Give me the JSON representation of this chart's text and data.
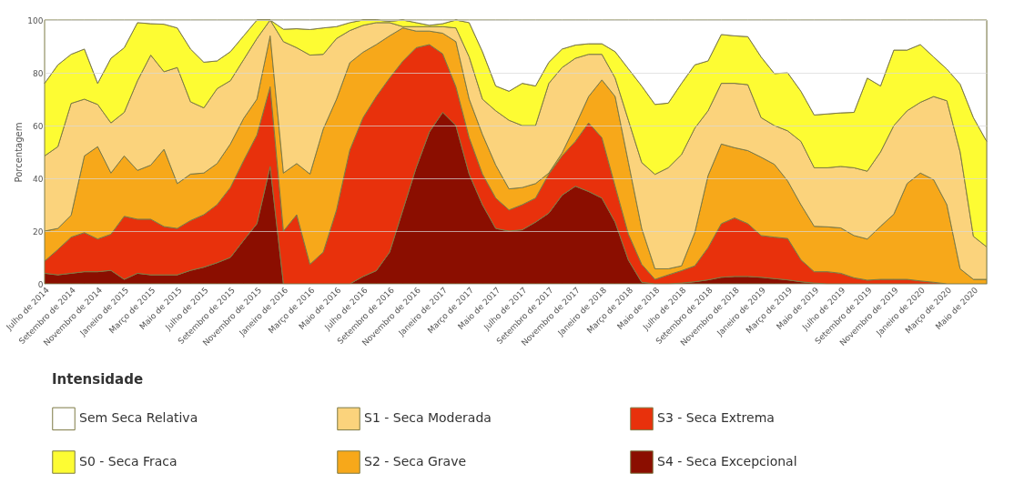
{
  "chart_data": {
    "type": "area",
    "stacked": true,
    "ylabel": "Porcentagem",
    "legend_title": "Intensidade",
    "legend": "bottom",
    "grid": "y",
    "ylim": [
      0,
      100
    ],
    "yticks": [
      0,
      20,
      40,
      60,
      80,
      100
    ],
    "categories": [
      "Julho de 2014",
      null,
      "Setembro de 2014",
      null,
      "Novembro de 2014",
      null,
      "Janeiro de 2015",
      null,
      "Março de 2015",
      null,
      "Maio de 2015",
      null,
      "Julho de 2015",
      null,
      "Setembro de 2015",
      null,
      "Novembro de 2015",
      null,
      "Janeiro de 2016",
      null,
      "Março de 2016",
      null,
      "Maio de 2016",
      null,
      "Julho de 2016",
      null,
      "Setembro de 2016",
      null,
      "Novembro de 2016",
      null,
      "Janeiro de 2017",
      null,
      "Março de 2017",
      null,
      "Maio de 2017",
      null,
      "Julho de 2017",
      null,
      "Setembro de 2017",
      null,
      "Novembro de 2017",
      null,
      "Janeiro de 2018",
      null,
      "Março de 2018",
      null,
      "Maio de 2018",
      null,
      "Julho de 2018",
      null,
      "Setembro de 2018",
      null,
      "Novembro de 2018",
      null,
      "Janeiro de 2019",
      null,
      "Março de 2019",
      null,
      "Maio de 2019",
      null,
      "Julho de 2019",
      null,
      "Setembro de 2019",
      null,
      "Novembro de 2019",
      null,
      "Janeiro de 2020",
      null,
      "Março de 2020",
      null,
      "Maio de 2020",
      null
    ],
    "series": [
      {
        "name": "S4 - Seca Excepcional",
        "color": "#8b0e00",
        "values": [
          4,
          3.4,
          4,
          4.6,
          4.6,
          5.1,
          1.7,
          4,
          3.4,
          3.4,
          3.4,
          5.1,
          6.3,
          8,
          10,
          16.5,
          22.8,
          44.5,
          0,
          0,
          0,
          0,
          0,
          0,
          2.8,
          5,
          12,
          28,
          44,
          57.6,
          65,
          60,
          41.6,
          30,
          21,
          20,
          20.5,
          23.4,
          26.8,
          33.6,
          37,
          35,
          32.5,
          23.4,
          9,
          0.6,
          0,
          0,
          0.3,
          0.8,
          1.5,
          2.5,
          2.8,
          2.8,
          2.5,
          2,
          1.5,
          0.8,
          0.3,
          0,
          0,
          0,
          0,
          0,
          0,
          0,
          0,
          0,
          0,
          0,
          0,
          0
        ]
      },
      {
        "name": "S3 - Seca Extrema",
        "color": "#e8310c",
        "values": [
          4.6,
          9.6,
          13.7,
          14.8,
          12.4,
          13.7,
          23.9,
          20.5,
          21.1,
          18.3,
          17.6,
          18.9,
          19.9,
          22,
          26.5,
          30.2,
          33.6,
          30.2,
          20,
          26.2,
          7.4,
          12,
          28,
          50.7,
          60.2,
          66,
          66,
          56.4,
          45.5,
          33.1,
          22.2,
          14.7,
          13.8,
          11.6,
          11.5,
          8,
          9.5,
          9.1,
          14.8,
          14.9,
          17,
          26,
          22.9,
          13.6,
          9.8,
          6.8,
          1.7,
          3.4,
          4.7,
          6,
          12.2,
          20.3,
          22.2,
          20,
          15.8,
          15.7,
          15.7,
          8.3,
          4.3,
          4.6,
          4,
          2.3,
          1.4,
          1.7,
          1.7,
          1.7,
          1.1,
          0.6,
          0,
          0,
          0,
          0
        ]
      },
      {
        "name": "S2 - Seca Grave",
        "color": "#f7a81a",
        "values": [
          11.4,
          8,
          8.3,
          29.1,
          35,
          23.2,
          22.9,
          18.5,
          20.5,
          29.3,
          17,
          17.6,
          15.8,
          15.6,
          16.5,
          16,
          13.6,
          19.3,
          22,
          19.4,
          34.2,
          46.7,
          42,
          33.1,
          24.8,
          19.7,
          16,
          12.6,
          6.3,
          5.1,
          7.8,
          17.1,
          14.6,
          15,
          12.5,
          8,
          6.5,
          5.5,
          0.4,
          1.1,
          6,
          10,
          21.9,
          34,
          27.2,
          13.6,
          4,
          2.3,
          1.8,
          12.6,
          27.3,
          30.2,
          26.6,
          27.7,
          29.7,
          27.6,
          21.8,
          20.9,
          17.2,
          17,
          17.2,
          16,
          15.6,
          20.1,
          24.7,
          36.3,
          40.9,
          38.9,
          30,
          5.7,
          1.7,
          1.7
        ]
      },
      {
        "name": "S1 - Seca Moderada",
        "color": "#fbd37c",
        "values": [
          28.5,
          31,
          42.4,
          21.5,
          16,
          19,
          16.5,
          34,
          41.7,
          29.4,
          44,
          27.4,
          24.7,
          28.4,
          24,
          22.3,
          23,
          6,
          49.8,
          43.9,
          45.1,
          28.3,
          23,
          12.2,
          10.2,
          8.3,
          5,
          0.5,
          1.7,
          1.7,
          2.5,
          5.2,
          16,
          13.4,
          20.6,
          26,
          23.5,
          22,
          34,
          32.4,
          25.5,
          16,
          9.7,
          7,
          16,
          25,
          35.8,
          38.3,
          42.2,
          39.6,
          24.6,
          23,
          24.4,
          25,
          15,
          14.7,
          19,
          24,
          22.2,
          22.4,
          23.3,
          25.7,
          25.7,
          28.2,
          33.6,
          27.6,
          26.8,
          31.5,
          39.4,
          44.3,
          16.3,
          12.3
        ]
      },
      {
        "name": "S0 - Seca Fraca",
        "color": "#fdfc33",
        "values": [
          27.5,
          31,
          18.6,
          19,
          8,
          24.5,
          24.5,
          22,
          11.9,
          18,
          15,
          20,
          17.3,
          10.5,
          11,
          9,
          7,
          0,
          4.7,
          7.2,
          9.7,
          10,
          4.5,
          3,
          2,
          1,
          0.5,
          2.5,
          1.5,
          0.5,
          1.1,
          3,
          13,
          18,
          9.4,
          11,
          16,
          15,
          8,
          7,
          5,
          4,
          4,
          10,
          19.5,
          29,
          26.5,
          24.5,
          27,
          24,
          18.9,
          18.5,
          18,
          18.2,
          23,
          19.7,
          22,
          19,
          20,
          20.4,
          20.3,
          21,
          35.3,
          25,
          28.6,
          23,
          21.9,
          15,
          12,
          25.7,
          45,
          40
        ]
      },
      {
        "name": "Sem Seca Relativa",
        "color": "#ffffff",
        "values": [
          24,
          17,
          13,
          11,
          24,
          14.5,
          10.5,
          1,
          1.4,
          1.6,
          3,
          11,
          16,
          15.5,
          12,
          6,
          0,
          0,
          3.5,
          3.3,
          3.6,
          3,
          2.5,
          1,
          0,
          0,
          0.5,
          0,
          1,
          2,
          1.4,
          0,
          1,
          12,
          25,
          27,
          24,
          25,
          16,
          11,
          9.5,
          9,
          9,
          12,
          18.5,
          25,
          32,
          31.5,
          24,
          17,
          15.5,
          5.5,
          6,
          6.3,
          14,
          20.3,
          20,
          27,
          36,
          35.6,
          35.2,
          35,
          22,
          25,
          11.4,
          11.4,
          9.3,
          14,
          18.6,
          24.3,
          37,
          46
        ]
      }
    ]
  }
}
